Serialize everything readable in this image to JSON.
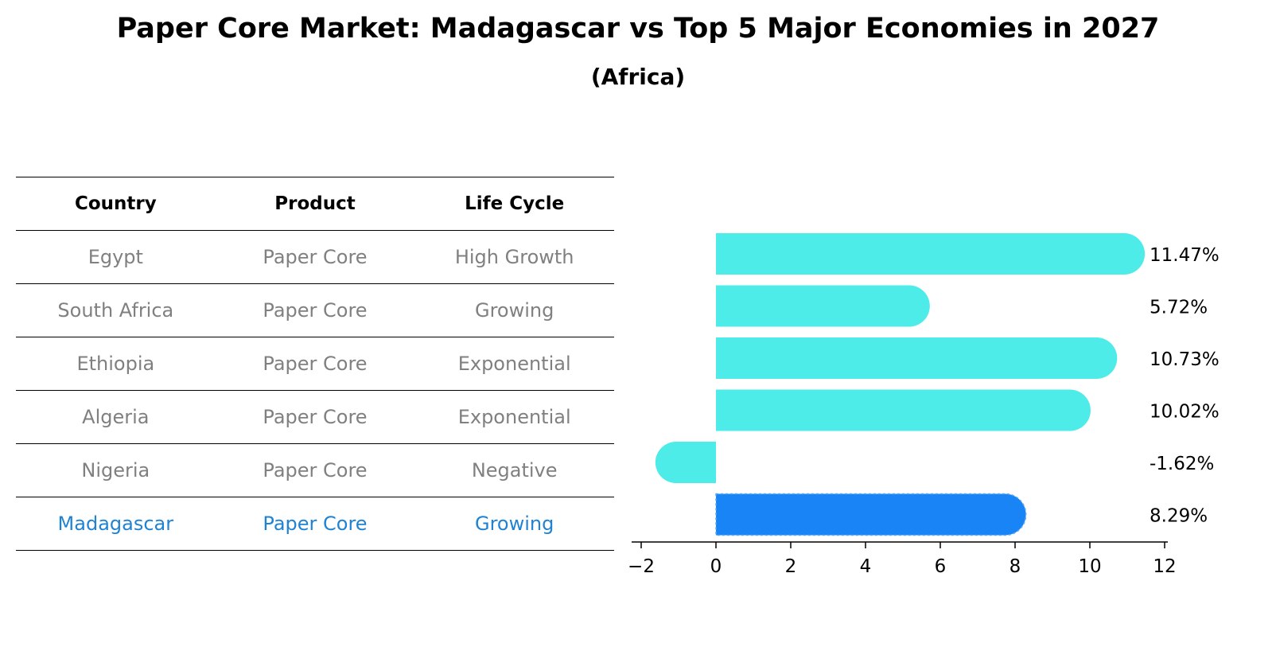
{
  "title": "Paper Core Market: Madagascar vs Top 5 Major Economies in 2027",
  "subtitle": "(Africa)",
  "table": {
    "headers": [
      "Country",
      "Product",
      "Life Cycle"
    ],
    "rows": [
      [
        "Egypt",
        "Paper Core",
        "High Growth"
      ],
      [
        "South Africa",
        "Paper Core",
        "Growing"
      ],
      [
        "Ethiopia",
        "Paper Core",
        "Exponential"
      ],
      [
        "Algeria",
        "Paper Core",
        "Exponential"
      ],
      [
        "Nigeria",
        "Paper Core",
        "Negative"
      ],
      [
        "Madagascar",
        "Paper Core",
        "Growing"
      ]
    ],
    "highlight_row": 5
  },
  "chart_data": {
    "type": "bar",
    "orientation": "horizontal",
    "categories": [
      "Egypt",
      "South Africa",
      "Ethiopia",
      "Algeria",
      "Nigeria",
      "Madagascar"
    ],
    "values": [
      11.47,
      5.72,
      10.73,
      10.02,
      -1.62,
      8.29
    ],
    "labels": [
      "11.47%",
      "5.72%",
      "10.73%",
      "10.02%",
      "-1.62%",
      "8.29%"
    ],
    "xlim": [
      -2,
      12
    ],
    "xticks": [
      -2,
      0,
      2,
      4,
      6,
      8,
      10,
      12
    ],
    "xtick_labels": [
      "−2",
      "0",
      "2",
      "4",
      "6",
      "8",
      "10",
      "12"
    ],
    "colors": {
      "default": "#4eece9",
      "highlight": "#1984f5"
    },
    "highlight_index": 5,
    "grid": false
  }
}
